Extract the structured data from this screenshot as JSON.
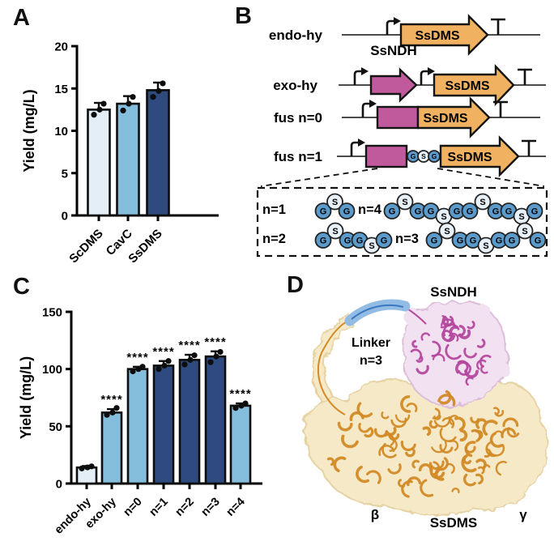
{
  "chart_data": [
    {
      "type": "bar",
      "panel": "A",
      "title": "",
      "xlabel": "",
      "ylabel": "Yield (mg/L)",
      "categories": [
        "ScDMS",
        "CavC",
        "SsDMS"
      ],
      "values": [
        12.5,
        13.2,
        14.8
      ],
      "points": [
        [
          11.9,
          12.5,
          13.2
        ],
        [
          12.4,
          13.2,
          14.0
        ],
        [
          14.0,
          14.7,
          15.6
        ]
      ],
      "errors": [
        0.8,
        0.9,
        0.9
      ],
      "sig": [
        "",
        "",
        ""
      ],
      "colors": [
        "#e4eef6",
        "#85bedd",
        "#2e4a7e"
      ],
      "ylim": [
        0,
        20
      ],
      "yticks": [
        0,
        5,
        10,
        15,
        20
      ],
      "grid": false,
      "legend": "none"
    },
    {
      "type": "bar",
      "panel": "C",
      "title": "",
      "xlabel": "",
      "ylabel": "Yield (mg/L)",
      "categories": [
        "endo-hy",
        "exo-hy",
        "n=0",
        "n=1",
        "n=2",
        "n=3",
        "n=4"
      ],
      "values": [
        14,
        62,
        100,
        103,
        108,
        111,
        68
      ],
      "points": [
        [
          13.2,
          14.1,
          15.0
        ],
        [
          60,
          62,
          66
        ],
        [
          98,
          100,
          102
        ],
        [
          100,
          103,
          107
        ],
        [
          104,
          108,
          112
        ],
        [
          106,
          111,
          115
        ],
        [
          66,
          68,
          70
        ]
      ],
      "errors": [
        1.3,
        3,
        2,
        4,
        4.5,
        4.5,
        2
      ],
      "sig": [
        "",
        "****",
        "****",
        "****",
        "****",
        "****",
        "****"
      ],
      "colors": [
        "#e4eef6",
        "#85bedd",
        "#85bedd",
        "#2e4a7e",
        "#2e4a7e",
        "#2e4a7e",
        "#85bedd"
      ],
      "ylim": [
        0,
        150
      ],
      "yticks": [
        0,
        50,
        100,
        150
      ],
      "grid": false,
      "legend": "none"
    }
  ],
  "panelA": {
    "label": "A"
  },
  "panelB": {
    "label": "B",
    "rows": [
      {
        "name": "endo-hy",
        "gene": "SsDMS"
      },
      {
        "name": "exo-hy",
        "above": "SsNDH",
        "gene": "SsDMS"
      },
      {
        "name": "fus n=0",
        "gene": "SsDMS"
      },
      {
        "name": "fus n=1",
        "gene": "SsDMS",
        "linker": "GSG"
      }
    ],
    "box": {
      "items": [
        {
          "label": "n=1",
          "letters": "GSG"
        },
        {
          "label": "n=4",
          "letters": "GSGGSGGSGGSG"
        },
        {
          "label": "n=2",
          "letters": "GSGGSG"
        },
        {
          "label": "n=3",
          "letters": "GSGGSGGSG"
        }
      ]
    },
    "colors": {
      "gene_fill": "#f0b160",
      "ndh_fill": "#c05a9d",
      "g_fill": "#5b9bcb",
      "s_fill": "#e9f1f8"
    }
  },
  "panelC": {
    "label": "C"
  },
  "panelD": {
    "label": "D",
    "labels": {
      "top": "SsNDH",
      "linker_line1": "Linker",
      "linker_line2": "n=3",
      "beta": "β",
      "bottom": "SsDMS",
      "gamma": "γ"
    },
    "colors": {
      "ndh_surface": "#f2e1f0",
      "ndh_edge": "#ddbeda",
      "ndh_cartoon": "#b4489e",
      "dms_surface": "#f6e9c8",
      "dms_edge": "#e6d3a4",
      "dms_cartoon": "#d28a26",
      "linker_tube": "#92bce4",
      "linker_line": "#3c78c0"
    }
  }
}
